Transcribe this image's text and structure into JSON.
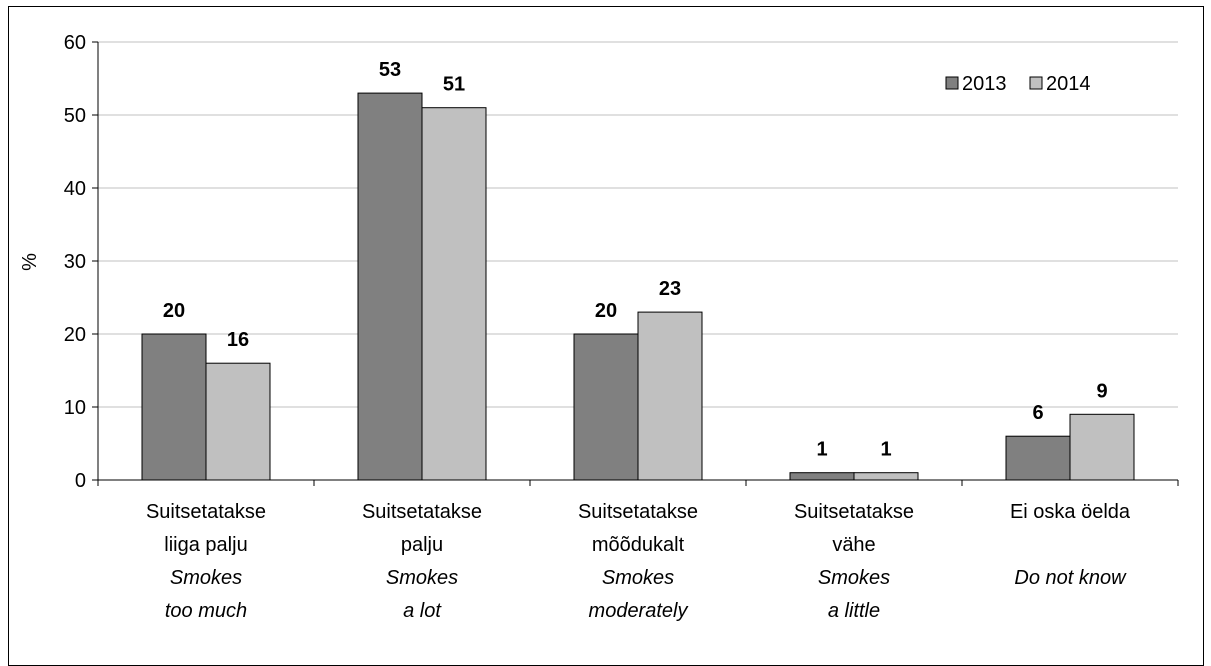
{
  "chart_data": {
    "type": "bar",
    "categories": [
      {
        "label_et": [
          "Suitsetatakse",
          "liiga palju"
        ],
        "label_en": [
          "Smokes",
          "too much"
        ]
      },
      {
        "label_et": [
          "Suitsetatakse",
          "palju"
        ],
        "label_en": [
          "Smokes",
          "a lot"
        ]
      },
      {
        "label_et": [
          "Suitsetatakse",
          "mõõdukalt"
        ],
        "label_en": [
          "Smokes",
          "moderately"
        ]
      },
      {
        "label_et": [
          "Suitsetatakse",
          "vähe"
        ],
        "label_en": [
          "Smokes",
          "a little"
        ]
      },
      {
        "label_et": [
          "Ei oska öelda"
        ],
        "label_en": [
          "Do not know"
        ]
      }
    ],
    "series": [
      {
        "name": "2013",
        "values": [
          20,
          53,
          20,
          1,
          6
        ],
        "color": "#808080"
      },
      {
        "name": "2014",
        "values": [
          16,
          51,
          23,
          1,
          9
        ],
        "color": "#c0c0c0"
      }
    ],
    "ylabel": "%",
    "ylim": [
      0,
      60
    ],
    "yticks": [
      0,
      10,
      20,
      30,
      40,
      50,
      60
    ],
    "grid": true,
    "legend_position": "top-right"
  }
}
